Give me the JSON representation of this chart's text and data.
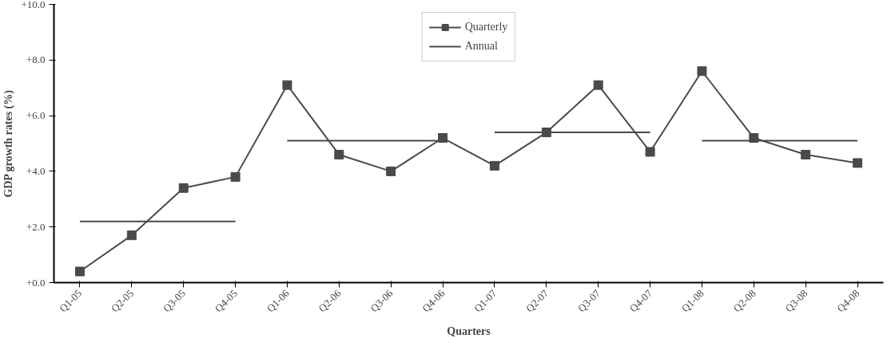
{
  "chart_data": {
    "type": "line",
    "xlabel": "Quarters",
    "ylabel": "GDP growth rates (%)",
    "categories": [
      "Q1-05",
      "Q2-05",
      "Q3-05",
      "Q4-05",
      "Q1-06",
      "Q2-06",
      "Q3-06",
      "Q4-06",
      "Q1-07",
      "Q2-07",
      "Q3-07",
      "Q4-07",
      "Q1-08",
      "Q2-08",
      "Q3-08",
      "Q4-08"
    ],
    "series": [
      {
        "name": "Quarterly",
        "color": "#4a4a4a",
        "marker": "square",
        "values": [
          0.4,
          1.7,
          3.4,
          3.8,
          7.1,
          4.6,
          4.0,
          5.2,
          4.2,
          5.4,
          7.1,
          4.7,
          7.6,
          5.2,
          4.6,
          4.3
        ]
      },
      {
        "name": "Annual",
        "color": "#4a4a4a",
        "marker": "none",
        "values": [
          2.2,
          2.2,
          2.2,
          2.2,
          null,
          null,
          null,
          null,
          null,
          null,
          null,
          null,
          null,
          null,
          null,
          null
        ]
      },
      {
        "color": "#4a4a4a",
        "marker": "none",
        "values": [
          null,
          null,
          null,
          null,
          5.1,
          5.1,
          5.1,
          5.1,
          null,
          null,
          null,
          null,
          null,
          null,
          null,
          null
        ]
      },
      {
        "color": "#4a4a4a",
        "marker": "none",
        "values": [
          null,
          null,
          null,
          null,
          null,
          null,
          null,
          null,
          5.4,
          5.4,
          5.4,
          5.4,
          null,
          null,
          null,
          null
        ]
      },
      {
        "color": "#4a4a4a",
        "marker": "none",
        "values": [
          null,
          null,
          null,
          null,
          null,
          null,
          null,
          null,
          null,
          null,
          null,
          null,
          5.1,
          5.1,
          5.1,
          5.1
        ]
      }
    ],
    "ylim": [
      0,
      10
    ],
    "yticks": [
      {
        "value": 0,
        "label": "+0.0"
      },
      {
        "value": 2,
        "label": "+2.0"
      },
      {
        "value": 4,
        "label": "+4.0"
      },
      {
        "value": 6,
        "label": "+6.0"
      },
      {
        "value": 8,
        "label": "+8.0"
      },
      {
        "value": 10,
        "label": "+10.0"
      }
    ],
    "grid": false,
    "legend": "top",
    "line_style": "solid"
  }
}
